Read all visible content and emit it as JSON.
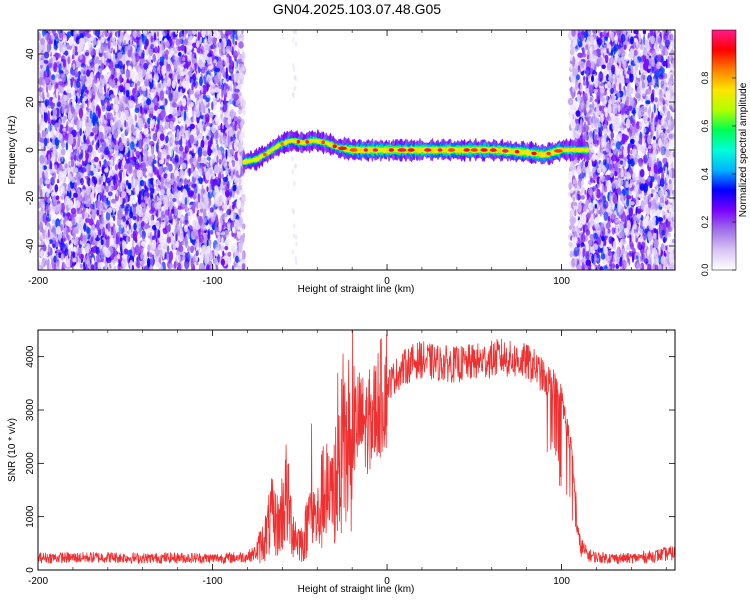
{
  "title": "GN04.2025.103.07.48.G05",
  "chart_data": [
    {
      "type": "heatmap",
      "xlabel": "Height of straight line (km)",
      "ylabel": "Frequency (Hz)",
      "xlim": [
        -200,
        165
      ],
      "ylim": [
        -50,
        50
      ],
      "xticks": [
        -200,
        -100,
        0,
        100
      ],
      "yticks": [
        -40,
        -20,
        0,
        20,
        40
      ],
      "colorbar": {
        "label": "Normalized spectral amplitude",
        "range": [
          0,
          1
        ],
        "ticks": [
          "0.0",
          "0.2",
          "0.4",
          "0.6",
          "0.8"
        ],
        "colors": [
          "#ffffff",
          "#d8c4f4",
          "#a070e8",
          "#7a00ff",
          "#0000ff",
          "#00b4ff",
          "#00ffd8",
          "#00ff50",
          "#b4ff00",
          "#ffe400",
          "#ff8000",
          "#ff0000",
          "#ff1a8c"
        ]
      },
      "noise_regions_x": [
        [
          -200,
          -82
        ],
        [
          105,
          165
        ]
      ],
      "signal_trace": {
        "x": [
          -82,
          -75,
          -68,
          -62,
          -55,
          -48,
          -42,
          -35,
          -28,
          -20,
          -12,
          0,
          20,
          40,
          60,
          80,
          90,
          100,
          108,
          115
        ],
        "y": [
          -5,
          -4,
          -1,
          2,
          4,
          3,
          4,
          3,
          1,
          0,
          0,
          0,
          0,
          0,
          0,
          -1,
          -2,
          0,
          0,
          0
        ],
        "peak_amplitude": 0.95
      }
    },
    {
      "type": "line",
      "xlabel": "Height of straight line (km)",
      "ylabel": "SNR (10 * v/v)",
      "xlim": [
        -200,
        165
      ],
      "ylim": [
        0,
        4500
      ],
      "xticks": [
        -200,
        -100,
        0,
        100
      ],
      "yticks": [
        0,
        1000,
        2000,
        3000,
        4000
      ],
      "color": "#ee3030",
      "series": [
        {
          "x": [
            -200,
            -180,
            -160,
            -140,
            -120,
            -100,
            -90,
            -80,
            -75,
            -70,
            -66,
            -62,
            -58,
            -55,
            -52,
            -48,
            -44,
            -40,
            -36,
            -32,
            -28,
            -24,
            -20,
            -16,
            -12,
            -8,
            -4,
            0,
            5,
            10,
            15,
            20,
            25,
            30,
            40,
            50,
            60,
            65,
            70,
            80,
            85,
            90,
            95,
            100,
            103,
            106,
            108,
            110,
            115,
            120,
            130,
            140,
            150,
            160,
            165
          ],
          "y": [
            230,
            230,
            240,
            220,
            230,
            220,
            230,
            250,
            330,
            600,
            1000,
            800,
            1450,
            900,
            600,
            500,
            1100,
            900,
            1500,
            1200,
            2000,
            2100,
            2600,
            2800,
            2700,
            2900,
            3200,
            3450,
            3650,
            3800,
            3900,
            3950,
            3900,
            3880,
            3850,
            3900,
            3950,
            4000,
            3950,
            3900,
            3800,
            3600,
            3500,
            3200,
            2700,
            2200,
            1200,
            500,
            280,
            240,
            220,
            220,
            250,
            300,
            320
          ]
        }
      ]
    }
  ]
}
